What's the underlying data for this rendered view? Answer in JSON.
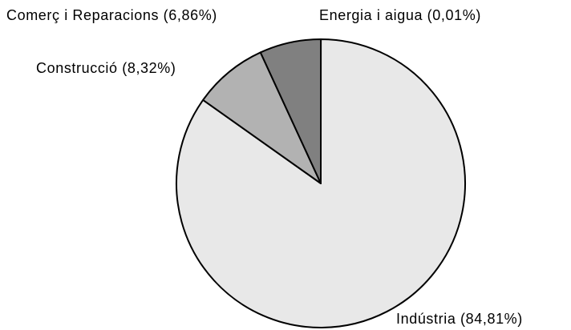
{
  "chart_data": {
    "type": "pie",
    "values": [
      0.01,
      84.81,
      8.32,
      6.86
    ],
    "value_labels": [
      "Energia i aigua (0,01%)",
      "Indústria (84,81%)",
      "Construcció (8,32%)",
      "Comerç i Reparacions (6,86%)"
    ],
    "colors": [
      "#404040",
      "#e8e8e8",
      "#b2b2b2",
      "#808080"
    ]
  }
}
